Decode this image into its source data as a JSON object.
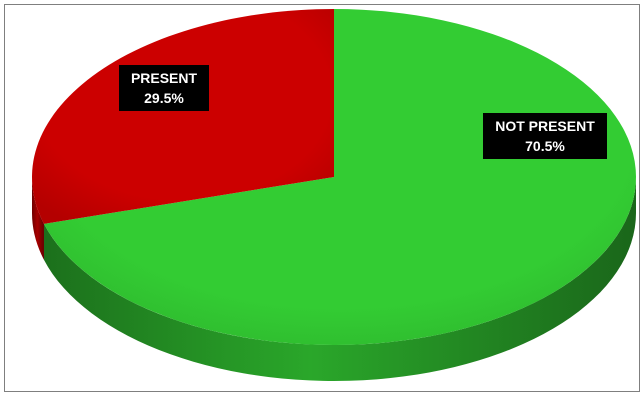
{
  "chart_data": {
    "type": "pie",
    "title": "",
    "three_d": true,
    "slices": [
      {
        "label": "NOT PRESENT",
        "value": 70.5,
        "value_text": "70.5%",
        "color": "#33cc33"
      },
      {
        "label": "PRESENT",
        "value": 29.5,
        "value_text": "29.5%",
        "color": "#cc0000"
      }
    ],
    "legend": "none"
  }
}
